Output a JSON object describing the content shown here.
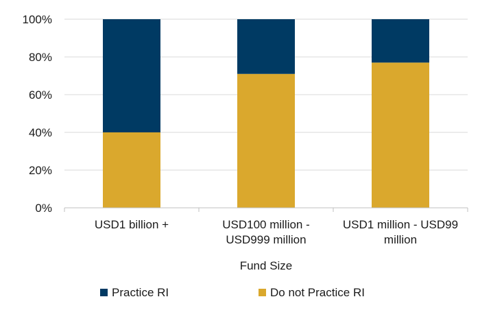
{
  "chart_data": {
    "type": "bar",
    "stacked": true,
    "percent": true,
    "categories": [
      [
        "USD1 billion +"
      ],
      [
        "USD100 million -",
        "USD999 million"
      ],
      [
        "USD1 million - USD99",
        "million"
      ]
    ],
    "series": [
      {
        "name": "Do not Practice RI",
        "color": "#DAA82D",
        "values": [
          40,
          71,
          77
        ]
      },
      {
        "name": "Practice RI",
        "color": "#003A63",
        "values": [
          60,
          29,
          23
        ]
      }
    ],
    "xlabel": "Fund Size",
    "ylabel": "",
    "ylim": [
      0,
      100
    ],
    "yticks": [
      0,
      20,
      40,
      60,
      80,
      100
    ],
    "ytick_labels": [
      "0%",
      "20%",
      "40%",
      "60%",
      "80%",
      "100%"
    ],
    "grid": true,
    "legend": {
      "position": "bottom",
      "entries": [
        "Practice RI",
        "Do not Practice RI"
      ]
    }
  }
}
